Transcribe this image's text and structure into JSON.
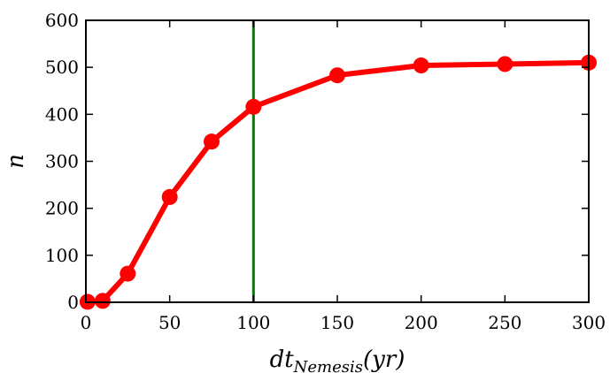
{
  "chart_data": {
    "type": "line",
    "xlabel": {
      "base": "dt",
      "sub": "Nemesis",
      "suffix": "(yr)"
    },
    "ylabel": "n",
    "xlim": [
      0,
      300
    ],
    "ylim": [
      0,
      600
    ],
    "xticks": [
      0,
      50,
      100,
      150,
      200,
      250,
      300
    ],
    "yticks": [
      0,
      100,
      200,
      300,
      400,
      500,
      600
    ],
    "series": [
      {
        "color": "#ff0000",
        "x": [
          1,
          10,
          25,
          50,
          75,
          100,
          150,
          200,
          250,
          300
        ],
        "y": [
          1,
          3,
          61,
          224,
          342,
          416,
          483,
          504,
          507,
          510
        ]
      }
    ],
    "vline": {
      "x": 100,
      "color": "#007f00"
    },
    "grid": false
  }
}
